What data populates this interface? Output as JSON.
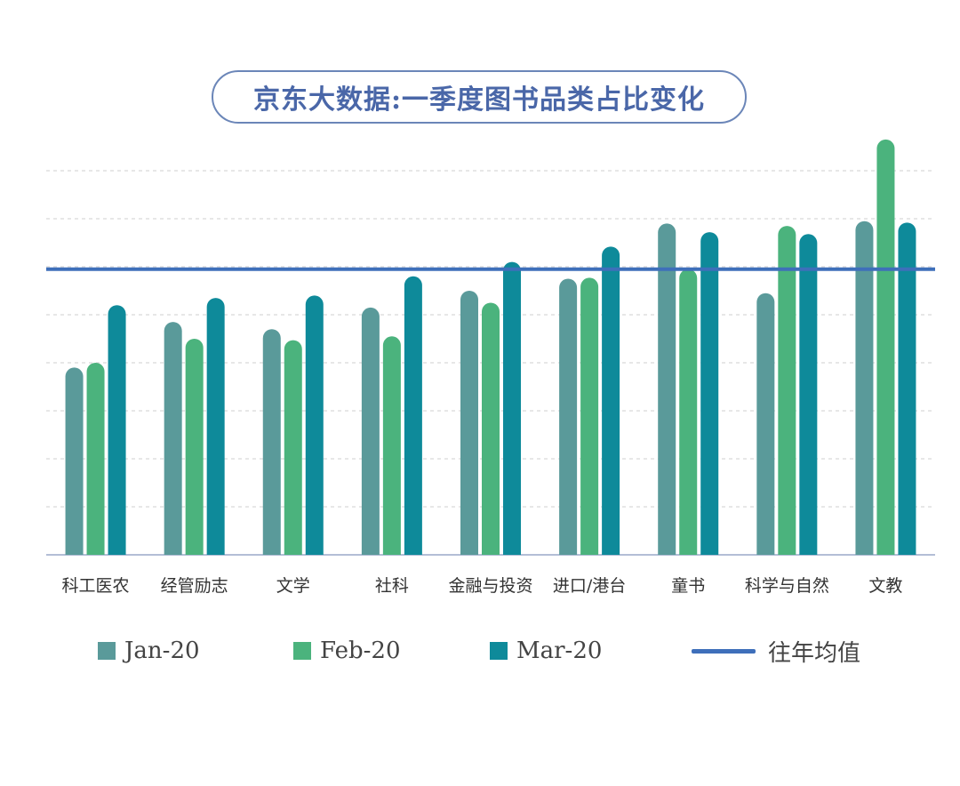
{
  "title": "京东大数据:一季度图书品类占比变化",
  "colors": {
    "jan": "#5a9a9a",
    "feb": "#4bb37d",
    "mar": "#0e8a9a",
    "avg": "#3e6fba",
    "grid": "#cfcfcf",
    "axis": "#9aa9c9"
  },
  "chart_data": {
    "type": "bar",
    "categories": [
      "科工医农",
      "经管励志",
      "文学",
      "社科",
      "金融与投资",
      "进口/港台",
      "童书",
      "科学与自然",
      "文教"
    ],
    "series": [
      {
        "name": "Jan-20",
        "values": [
          3.9,
          4.85,
          4.7,
          5.15,
          5.5,
          5.75,
          6.9,
          5.45,
          6.95
        ]
      },
      {
        "name": "Feb-20",
        "values": [
          4.0,
          4.5,
          4.47,
          4.55,
          5.25,
          5.77,
          5.95,
          6.85,
          8.65
        ]
      },
      {
        "name": "Mar-20",
        "values": [
          5.2,
          5.35,
          5.4,
          5.8,
          6.1,
          6.42,
          6.72,
          6.68,
          6.92
        ]
      }
    ],
    "average": {
      "name": "往年均值",
      "value": 5.95
    },
    "ylim": [
      0,
      9
    ],
    "grid": true,
    "legend": "bottom"
  }
}
